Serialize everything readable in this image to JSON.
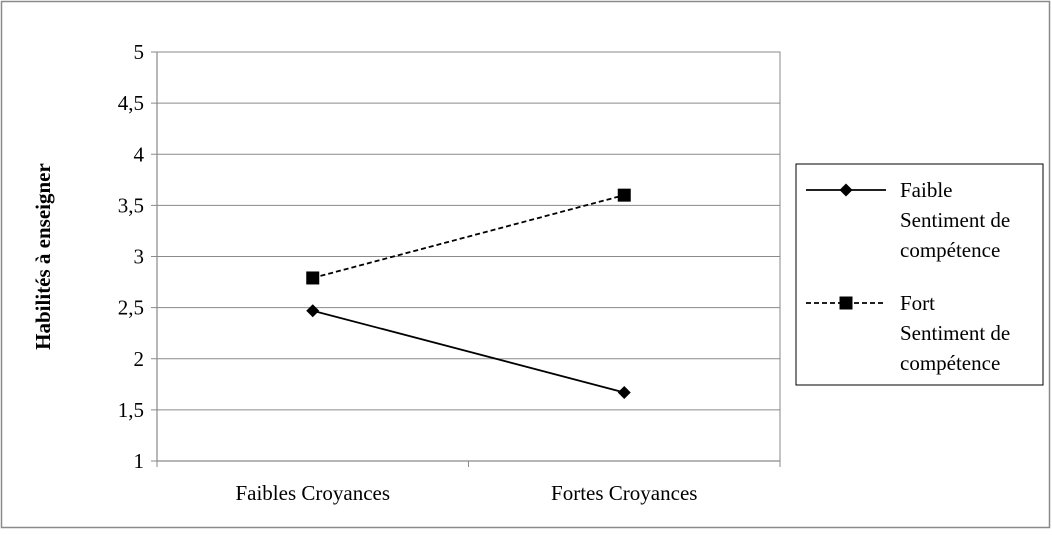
{
  "chart_data": {
    "type": "line",
    "title": "",
    "xlabel": "",
    "ylabel": "Habilités à enseigner",
    "categories": [
      "Faibles Croyances",
      "Fortes Croyances"
    ],
    "ylim": [
      1,
      5
    ],
    "yticks": [
      1,
      1.5,
      2,
      2.5,
      3,
      3.5,
      4,
      4.5,
      5
    ],
    "ytick_labels": [
      "1",
      "1,5",
      "2",
      "2,5",
      "3",
      "3,5",
      "4",
      "4,5",
      "5"
    ],
    "grid": true,
    "legend_position": "right",
    "series": [
      {
        "name_lines": [
          "Faible",
          "Sentiment de",
          "compétence"
        ],
        "values": [
          2.47,
          1.67
        ],
        "marker": "diamond",
        "line_style": "solid",
        "color": "#000000"
      },
      {
        "name_lines": [
          "Fort",
          "Sentiment de",
          "compétence"
        ],
        "values": [
          2.79,
          3.6
        ],
        "marker": "square",
        "line_style": "dashed",
        "color": "#000000"
      }
    ]
  }
}
